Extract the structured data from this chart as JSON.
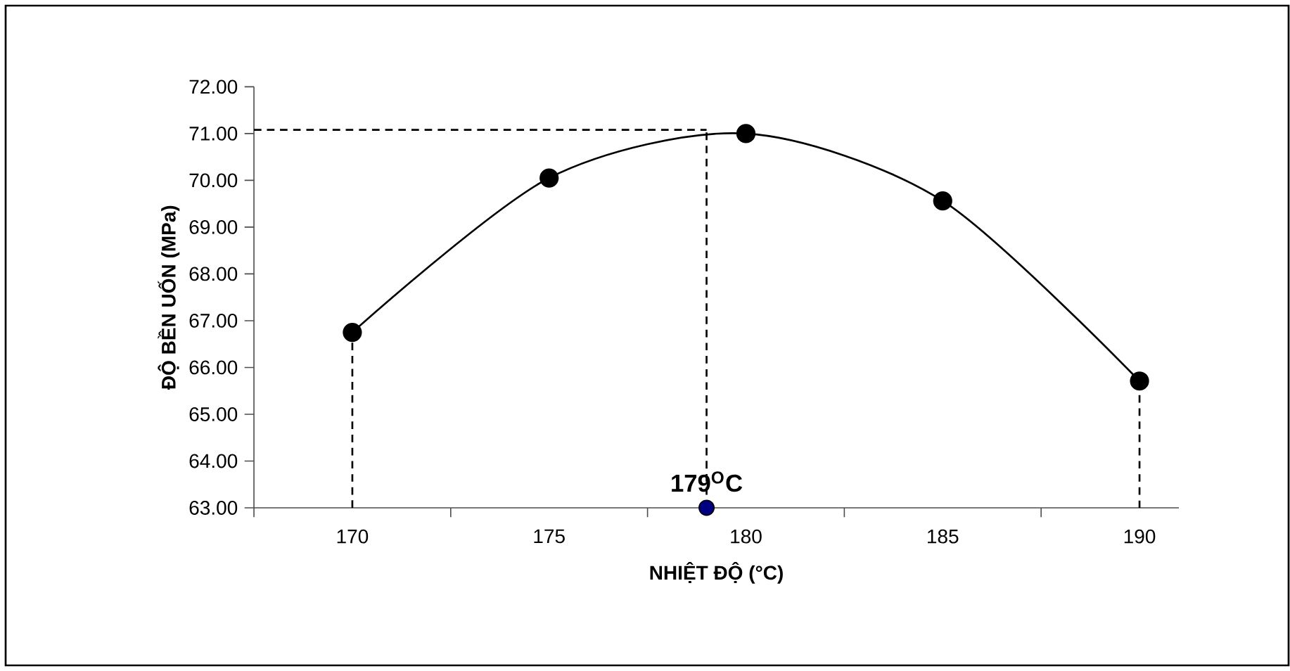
{
  "chart_data": {
    "type": "line",
    "xlabel": "NHIỆT ĐỘ (°C)",
    "ylabel": "ĐỘ BỀN UỐN (MPa)",
    "xlim": [
      167.5,
      191
    ],
    "ylim": [
      63,
      72
    ],
    "xticks": [
      {
        "value": 167.5,
        "label": null
      },
      170,
      {
        "value": 172.5,
        "label": null
      },
      175,
      {
        "value": 177.5,
        "label": null
      },
      180,
      {
        "value": 182.5,
        "label": null
      },
      185,
      {
        "value": 187.5,
        "label": null
      },
      190
    ],
    "yticks": [
      {
        "value": 63,
        "label": "63.00"
      },
      {
        "value": 64,
        "label": "64.00"
      },
      {
        "value": 65,
        "label": "65.00"
      },
      {
        "value": 66,
        "label": "66.00"
      },
      {
        "value": 67,
        "label": "67.00"
      },
      {
        "value": 68,
        "label": "68.00"
      },
      {
        "value": 69,
        "label": "69.00"
      },
      {
        "value": 70,
        "label": "70.00"
      },
      {
        "value": 71,
        "label": "71.00"
      },
      {
        "value": 72,
        "label": "72.00"
      }
    ],
    "grid": false,
    "series": [
      {
        "color": "#000000",
        "marker": "circle",
        "x": [
          170,
          175,
          180,
          185,
          190
        ],
        "values": [
          66.75,
          70.05,
          71.0,
          69.56,
          65.71
        ]
      },
      {
        "type": "line",
        "color": "#000000",
        "line_style": "dashed",
        "marker": "none",
        "x": [
          167.5,
          179
        ],
        "values": [
          71.08,
          71.08
        ]
      },
      {
        "type": "line",
        "color": "#000000",
        "line_style": "dashed",
        "marker": "none",
        "x": [
          179,
          179
        ],
        "values": [
          63,
          71.08
        ]
      },
      {
        "type": "line",
        "color": "#000000",
        "line_style": "dashed",
        "marker": "none",
        "x": [
          170,
          170
        ],
        "values": [
          63,
          66.75
        ]
      },
      {
        "type": "line",
        "color": "#000000",
        "line_style": "dashed",
        "marker": "none",
        "x": [
          190,
          190
        ],
        "values": [
          63,
          65.71
        ]
      },
      {
        "type": "scatter",
        "color": "#000080",
        "marker": "circle",
        "x": [
          179
        ],
        "values": [
          63
        ]
      }
    ],
    "annotations": [
      {
        "text": "179$^{O}$C",
        "x": 179,
        "y": 63
      }
    ]
  }
}
